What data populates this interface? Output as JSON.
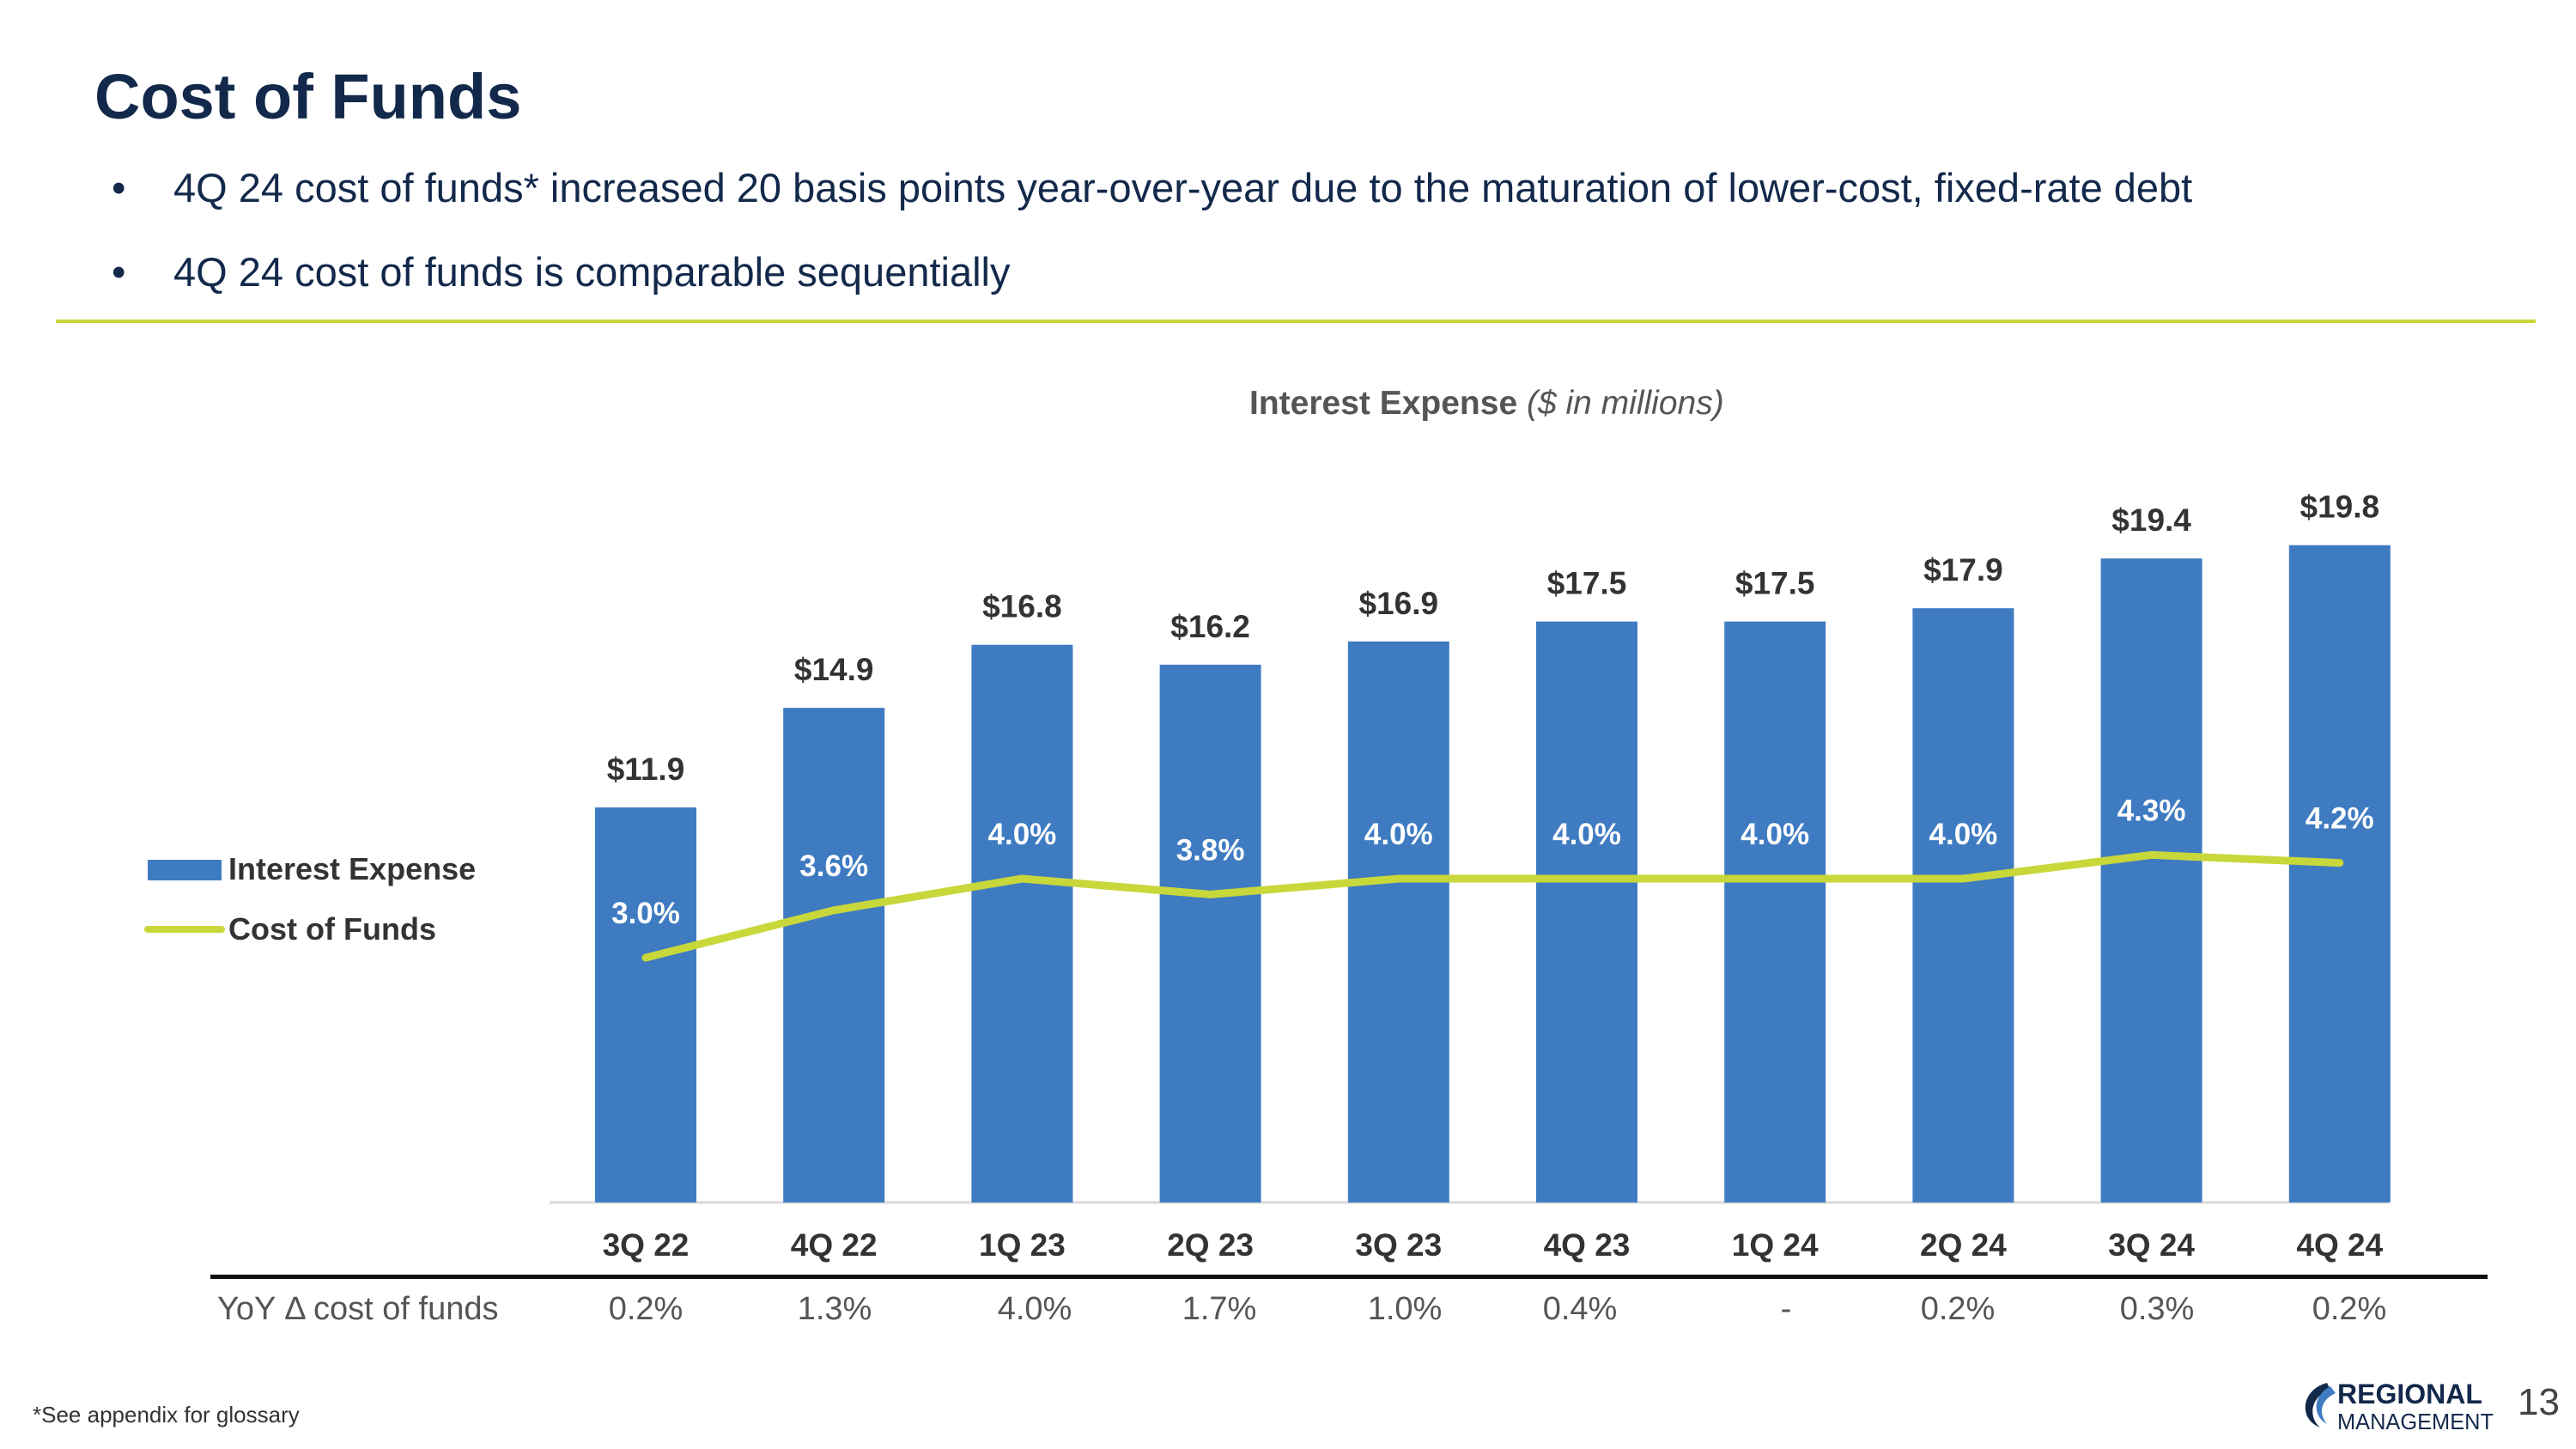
{
  "title": "Cost of Funds",
  "bullets": [
    "4Q 24 cost of funds* increased 20 basis points year-over-year due to the maturation of lower-cost, fixed-rate debt",
    "4Q 24 cost of funds is comparable sequentially"
  ],
  "chart_data": {
    "type": "bar",
    "title": "Interest Expense",
    "subtitle": "($ in millions)",
    "categories": [
      "3Q 22",
      "4Q 22",
      "1Q 23",
      "2Q 23",
      "3Q 23",
      "4Q 23",
      "1Q 24",
      "2Q 24",
      "3Q 24",
      "4Q 24"
    ],
    "series": [
      {
        "name": "Interest Expense",
        "type": "bar",
        "values": [
          11.9,
          14.9,
          16.8,
          16.2,
          16.9,
          17.5,
          17.5,
          17.9,
          19.4,
          19.8
        ],
        "labels": [
          "$11.9",
          "$14.9",
          "$16.8",
          "$16.2",
          "$16.9",
          "$17.5",
          "$17.5",
          "$17.9",
          "$19.4",
          "$19.8"
        ],
        "color": "#3f7bc1"
      },
      {
        "name": "Cost of Funds",
        "type": "line",
        "values": [
          3.0,
          3.6,
          4.0,
          3.8,
          4.0,
          4.0,
          4.0,
          4.0,
          4.3,
          4.2
        ],
        "labels": [
          "3.0%",
          "3.6%",
          "4.0%",
          "3.8%",
          "4.0%",
          "4.0%",
          "4.0%",
          "4.0%",
          "4.3%",
          "4.2%"
        ],
        "color": "#c8d73a"
      }
    ],
    "legend": "left",
    "grid": false
  },
  "yoy": {
    "label": "YoY Δ cost of funds",
    "values": [
      "0.2%",
      "1.3%",
      "4.0%",
      "1.7%",
      "1.0%",
      "0.4%",
      "-",
      "0.2%",
      "0.3%",
      "0.2%"
    ]
  },
  "footnote": "*See appendix for glossary",
  "logo": {
    "line1": "REGIONAL",
    "line2": "MANAGEMENT"
  },
  "page_number": "13",
  "colors": {
    "navy": "#13294b",
    "accent": "#c8d73a",
    "bar": "#3f7bc1"
  }
}
